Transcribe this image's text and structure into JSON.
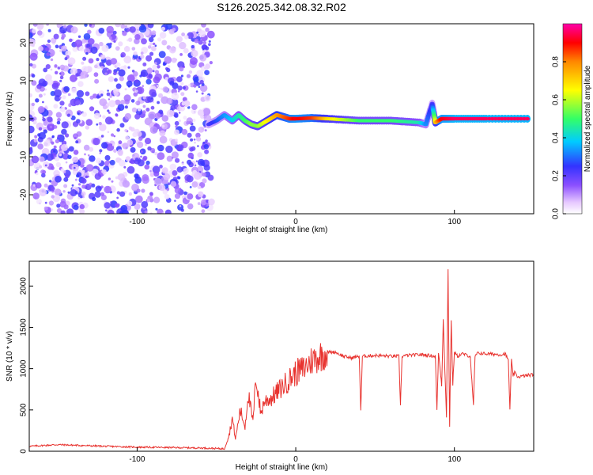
{
  "title": "S126.2025.342.08.32.R02",
  "colors": {
    "snr_line": "#e8332f",
    "colormap": [
      "#ffffff",
      "#e6c8ff",
      "#8c50ff",
      "#3333ff",
      "#00ccff",
      "#33ff66",
      "#ffff00",
      "#ff8800",
      "#ff0000",
      "#ff00aa"
    ]
  },
  "chart_data": [
    {
      "type": "heatmap",
      "xlabel": "Height of straight line (km)",
      "ylabel": "Frequency (Hz)",
      "xlim": [
        -168,
        150
      ],
      "ylim": [
        -25,
        25
      ],
      "x_ticks": [
        "-100",
        "0",
        "100"
      ],
      "x_tick_values": [
        -100,
        0,
        100
      ],
      "y_ticks": [
        "-20",
        "-10",
        "0",
        "10",
        "20"
      ],
      "y_tick_values": [
        -20,
        -10,
        0,
        10,
        20
      ],
      "noise_region_x": [
        -168,
        -56
      ],
      "signal_trace": {
        "x": [
          -55,
          -50,
          -45,
          -40,
          -36,
          -32,
          -28,
          -24,
          -20,
          -16,
          -12,
          -8,
          -4,
          0,
          10,
          20,
          40,
          60,
          78,
          82,
          86,
          88,
          92,
          100,
          120,
          148
        ],
        "y": [
          -1.5,
          -0.5,
          1.0,
          -0.5,
          1.0,
          -0.5,
          -1.5,
          -2.0,
          -1.0,
          0.0,
          1.0,
          0.5,
          0.0,
          0.0,
          0.2,
          0.0,
          -0.5,
          -0.5,
          -1.0,
          -1.5,
          4.0,
          -1.0,
          0.0,
          0.0,
          0.0,
          0.0
        ],
        "amplitude": [
          0.3,
          0.35,
          0.4,
          0.45,
          0.5,
          0.55,
          0.6,
          0.6,
          0.65,
          0.7,
          0.75,
          0.8,
          0.85,
          0.9,
          0.85,
          0.7,
          0.55,
          0.55,
          0.5,
          0.4,
          0.3,
          0.7,
          0.9,
          0.95,
          0.95,
          0.95
        ]
      },
      "colorbar": {
        "label": "Normalized spectral amplitude",
        "range": [
          0,
          1
        ],
        "ticks": [
          "0.0",
          "0.2",
          "0.4",
          "0.6",
          "0.8"
        ],
        "tick_values": [
          0,
          0.2,
          0.4,
          0.6,
          0.8
        ]
      }
    },
    {
      "type": "line",
      "xlabel": "Height of straight line (km)",
      "ylabel": "SNR (10 * v/v)",
      "xlim": [
        -168,
        150
      ],
      "ylim": [
        0,
        2300
      ],
      "x_ticks": [
        "-100",
        "0",
        "100"
      ],
      "x_tick_values": [
        -100,
        0,
        100
      ],
      "y_ticks": [
        "0",
        "500",
        "1000",
        "1500",
        "2000"
      ],
      "y_tick_values": [
        0,
        500,
        1000,
        1500,
        2000
      ],
      "series": [
        {
          "x": [
            -168,
            -150,
            -120,
            -100,
            -80,
            -60,
            -45,
            -42,
            -40,
            -38,
            -35,
            -32,
            -30,
            -27,
            -25,
            -22,
            -20,
            -15,
            -10,
            -5,
            0,
            5,
            10,
            15,
            20,
            25,
            30,
            35,
            40,
            41,
            42,
            50,
            60,
            65,
            66,
            67,
            70,
            80,
            88,
            89,
            90,
            92,
            93,
            95,
            96,
            97,
            98,
            99,
            100,
            102,
            105,
            110,
            112,
            113,
            115,
            120,
            130,
            132,
            134,
            135,
            136,
            137,
            138,
            140,
            150
          ],
          "y": [
            60,
            80,
            60,
            50,
            45,
            40,
            30,
            200,
            400,
            150,
            500,
            300,
            700,
            350,
            900,
            450,
            600,
            650,
            750,
            850,
            950,
            1000,
            1100,
            1150,
            1200,
            1200,
            1150,
            1130,
            1150,
            500,
            1150,
            1160,
            1150,
            1150,
            550,
            1150,
            1160,
            1170,
            1150,
            500,
            1200,
            800,
            1600,
            400,
            2200,
            300,
            1600,
            800,
            1200,
            1150,
            1180,
            1150,
            550,
            1150,
            1190,
            1180,
            1170,
            1180,
            1100,
            500,
            1100,
            920,
            950,
            900,
            930
          ]
        }
      ]
    }
  ]
}
